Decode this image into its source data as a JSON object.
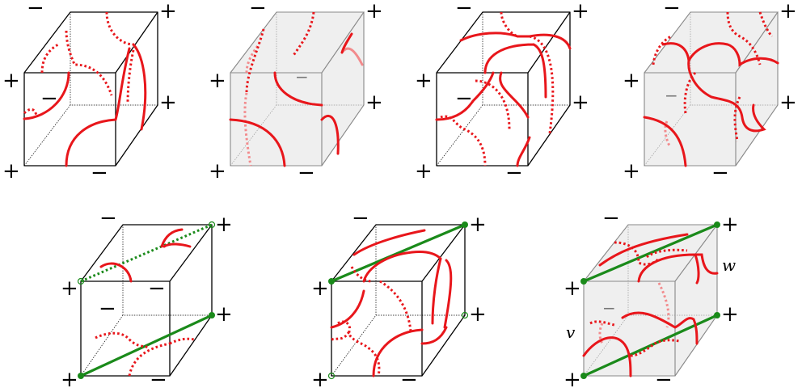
{
  "signs": {
    "plus": "+",
    "minus": "−"
  },
  "labels": {
    "v": "v",
    "w": "w"
  },
  "colors": {
    "curve": "#e8161b",
    "diagonal": "#1a8a1a",
    "face": "#efefef"
  }
}
